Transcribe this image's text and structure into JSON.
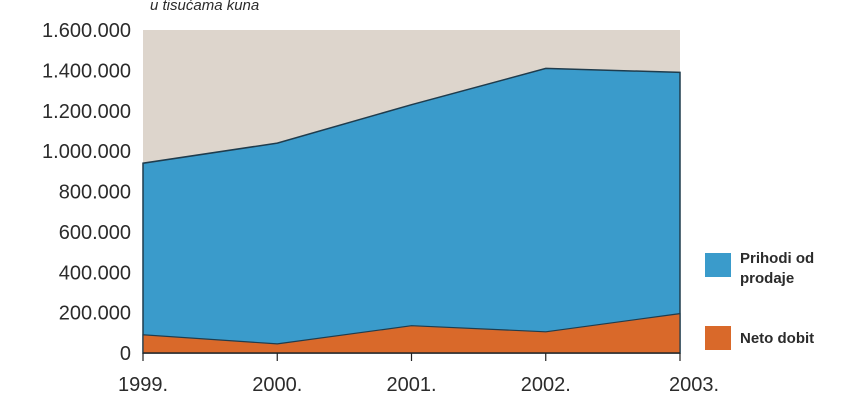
{
  "chart_data": {
    "type": "area",
    "unit_label": "u tisućama kuna",
    "categories": [
      "1999.",
      "2000.",
      "2001.",
      "2002.",
      "2003."
    ],
    "y_tick_labels": [
      "0",
      "200.000",
      "400.000",
      "600.000",
      "800.000",
      "1.000.000",
      "1.200.000",
      "1.400.000",
      "1.600.000"
    ],
    "ylim": [
      0,
      1600000
    ],
    "ytick_step": 200000,
    "grid": false,
    "legend_position": "right",
    "series": [
      {
        "name": "Prihodi od prodaje",
        "name_lines": [
          "Prihodi od",
          "prodaje"
        ],
        "values": [
          940000,
          1040000,
          1230000,
          1410000,
          1390000
        ],
        "color": "#3a9bcb"
      },
      {
        "name": "Neto dobit",
        "name_lines": [
          "Neto dobit"
        ],
        "values": [
          90000,
          45000,
          135000,
          105000,
          195000
        ],
        "color": "#d9692a"
      }
    ],
    "background_color": "#ddd5cc",
    "line_color": "#1f3c4d"
  }
}
